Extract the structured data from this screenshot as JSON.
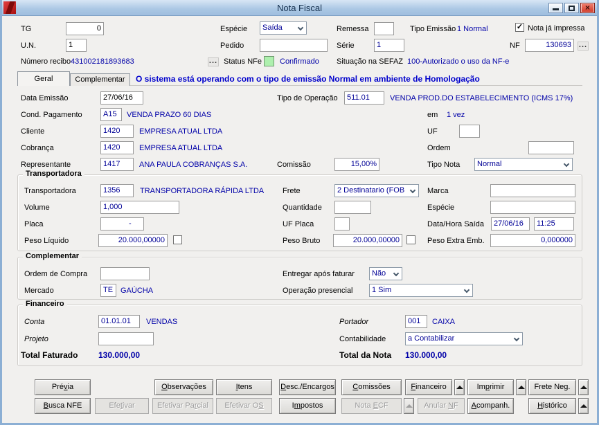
{
  "window": {
    "title": "Nota Fiscal",
    "controls": {
      "minimize": "minimize",
      "maximize": "maximize",
      "close": "×"
    }
  },
  "colors": {
    "value_navy": "#0000a8",
    "message_blue": "#0000cc",
    "status_green": "#aef0ae",
    "titlebar_blue": "#aac7e4",
    "frame_blue": "#8cafd4"
  },
  "header": {
    "tg": {
      "label": "TG",
      "value": "0"
    },
    "un": {
      "label": "U.N.",
      "value": "1"
    },
    "especie": {
      "label": "Espécie",
      "value": "Saída"
    },
    "pedido": {
      "label": "Pedido",
      "value": ""
    },
    "remessa": {
      "label": "Remessa",
      "value": ""
    },
    "serie": {
      "label": "Série",
      "value": "1"
    },
    "tipo_emissao": {
      "label": "Tipo Emissão",
      "value": "1 Normal"
    },
    "nf": {
      "label": "NF",
      "value": "130693",
      "more": "..."
    },
    "nota_ja_impressa": {
      "label": "Nota já impressa",
      "checked": true,
      "check_glyph": "✓"
    },
    "numero_recibo": {
      "label": "Número recibo",
      "value": "431002181893683",
      "more": "..."
    },
    "status_nfe": {
      "label": "Status NFe",
      "value": "Confirmado"
    },
    "situacao_sefaz": {
      "label": "Situação na SEFAZ",
      "value": "100-Autorizado o uso da NF-e"
    }
  },
  "tabs": {
    "geral": "Geral",
    "complementar": "Complementar",
    "message": "O sistema está operando com o tipo de emissão Normal em ambiente de Homologação"
  },
  "geral": {
    "data_emissao": {
      "label": "Data Emissão",
      "value": "27/06/16"
    },
    "tipo_operacao": {
      "label": "Tipo de Operação",
      "code": "511.01",
      "desc": "VENDA PROD.DO ESTABELECIMENTO (ICMS 17%)"
    },
    "cond_pagamento": {
      "label": "Cond. Pagamento",
      "code": "A15",
      "desc": "VENDA PRAZO 60 DIAS"
    },
    "parcelas": {
      "label": "em",
      "value": "1 vez"
    },
    "cliente": {
      "label": "Cliente",
      "code": "1420",
      "desc": "EMPRESA ATUAL LTDA"
    },
    "uf": {
      "label": "UF",
      "value": ""
    },
    "cobranca": {
      "label": "Cobrança",
      "code": "1420",
      "desc": "EMPRESA ATUAL LTDA"
    },
    "ordem": {
      "label": "Ordem",
      "value": ""
    },
    "representante": {
      "label": "Representante",
      "code": "1417",
      "desc": "ANA PAULA COBRANÇAS S.A."
    },
    "comissao": {
      "label": "Comissão",
      "value": "15,00%"
    },
    "tipo_nota": {
      "label": "Tipo Nota",
      "value": "Normal"
    }
  },
  "transportadora": {
    "title": "Transportadora",
    "transportadora": {
      "label": "Transportadora",
      "code": "1356",
      "desc": "TRANSPORTADORA RÁPIDA LTDA"
    },
    "frete": {
      "label": "Frete",
      "value": "2 Destinatario (FOB"
    },
    "marca": {
      "label": "Marca",
      "value": ""
    },
    "volume": {
      "label": "Volume",
      "value": "1,000"
    },
    "quantidade": {
      "label": "Quantidade",
      "value": ""
    },
    "especie": {
      "label": "Espécie",
      "value": ""
    },
    "placa": {
      "label": "Placa",
      "value": "-"
    },
    "uf_placa": {
      "label": "UF Placa",
      "value": ""
    },
    "data_hora_saida": {
      "label": "Data/Hora Saída",
      "date": "27/06/16",
      "time": "11:25"
    },
    "peso_liquido": {
      "label": "Peso Líquido",
      "value": "20.000,00000",
      "checked": false
    },
    "peso_bruto": {
      "label": "Peso Bruto",
      "value": "20.000,00000",
      "checked": false
    },
    "peso_extra": {
      "label": "Peso Extra Emb.",
      "value": "0,000000"
    }
  },
  "complementar": {
    "title": "Complementar",
    "ordem_compra": {
      "label": "Ordem de Compra",
      "value": ""
    },
    "entregar_apos_faturar": {
      "label": "Entregar após faturar",
      "value": "Não"
    },
    "mercado": {
      "label": "Mercado",
      "code": "TE",
      "desc": "GAÚCHA"
    },
    "operacao_presencial": {
      "label": "Operação presencial",
      "value": "1 Sim"
    }
  },
  "financeiro": {
    "title": "Financeiro",
    "conta": {
      "label": "Conta",
      "code": "01.01.01",
      "desc": "VENDAS"
    },
    "portador": {
      "label": "Portador",
      "code": "001",
      "desc": "CAIXA"
    },
    "projeto": {
      "label": "Projeto",
      "value": ""
    },
    "contabilidade": {
      "label": "Contabilidade",
      "value": "a Contabilizar"
    },
    "total_faturado": {
      "label": "Total Faturado",
      "value": "130.000,00"
    },
    "total_nota": {
      "label": "Total da Nota",
      "value": "130.000,00"
    }
  },
  "buttons": {
    "row1": [
      {
        "id": "previa",
        "label": "Prévia",
        "accel_index": 3,
        "disabled": false,
        "arrow": false
      },
      {
        "id": "observacoes",
        "label": "Observações",
        "accel_index": 0,
        "disabled": false,
        "arrow": false
      },
      {
        "id": "itens",
        "label": "Itens",
        "accel_index": 0,
        "disabled": false,
        "arrow": false
      },
      {
        "id": "desc-encargos",
        "label": "Desc./Encargos",
        "accel_index": 0,
        "disabled": false,
        "arrow": false
      },
      {
        "id": "comissoes",
        "label": "Comissões",
        "accel_index": 0,
        "disabled": false,
        "arrow": false
      },
      {
        "id": "financeiro",
        "label": "Financeiro",
        "accel_index": 0,
        "disabled": false,
        "arrow": true
      },
      {
        "id": "imprimir",
        "label": "Imprimir",
        "accel_index": 2,
        "disabled": false,
        "arrow": true
      },
      {
        "id": "frete-neg",
        "label": "Frete Neg.",
        "accel_index": 8,
        "disabled": false,
        "arrow": true
      }
    ],
    "row2": [
      {
        "id": "busca-nfe",
        "label": "Busca NFE",
        "accel_index": 0,
        "disabled": false,
        "arrow": false
      },
      {
        "id": "efetivar",
        "label": "Efetivar",
        "accel_index": 3,
        "disabled": true,
        "arrow": false
      },
      {
        "id": "efetivar-parcial",
        "label": "Efetivar Parcial",
        "accel_index": 11,
        "disabled": true,
        "arrow": false
      },
      {
        "id": "efetivar-os",
        "label": "Efetivar OS",
        "accel_index": 10,
        "disabled": true,
        "arrow": false
      },
      {
        "id": "impostos",
        "label": "Impostos",
        "accel_index": 1,
        "disabled": false,
        "arrow": false
      },
      {
        "id": "nota-ecf",
        "label": "Nota ECF",
        "accel_index": 5,
        "disabled": true,
        "arrow": true
      },
      {
        "id": "anular-nf",
        "label": "Anular NF",
        "accel_index": 7,
        "disabled": true,
        "arrow": false
      },
      {
        "id": "acompanh",
        "label": "Acompanh.",
        "accel_index": 0,
        "disabled": false,
        "arrow": false
      },
      {
        "id": "historico",
        "label": "Histórico",
        "accel_index": 0,
        "disabled": false,
        "arrow": true
      }
    ]
  }
}
